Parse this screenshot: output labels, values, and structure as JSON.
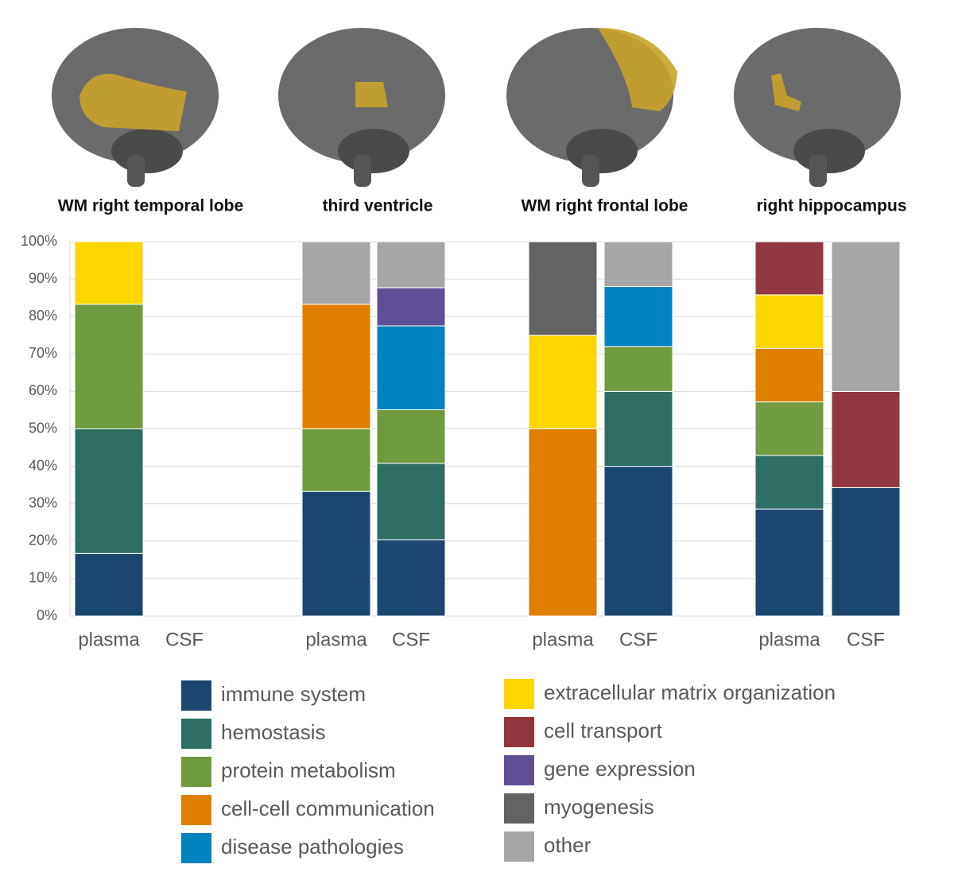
{
  "chart_data": {
    "type": "stacked_bar",
    "group_labels": [
      "WM right temporal lobe",
      "third ventricle",
      "WM right frontal lobe",
      "right hippocampus"
    ],
    "categories": [
      "plasma",
      "CSF",
      "plasma",
      "CSF",
      "plasma",
      "CSF",
      "plasma",
      "CSF"
    ],
    "series": [
      {
        "name": "immune system",
        "color": "#1b4670",
        "values": [
          16.7,
          null,
          33.3,
          20.4,
          null,
          40,
          28.6,
          34.3
        ]
      },
      {
        "name": "hemostasis",
        "color": "#2e6e64",
        "values": [
          33.3,
          null,
          null,
          20.4,
          null,
          20,
          14.3,
          null
        ]
      },
      {
        "name": "protein metabolism",
        "color": "#6f9a3e",
        "values": [
          33.3,
          null,
          16.7,
          14.3,
          null,
          12,
          14.3,
          null
        ]
      },
      {
        "name": "cell-cell communication",
        "color": "#e07e00",
        "values": [
          null,
          null,
          33.3,
          null,
          50,
          null,
          14.3,
          null
        ]
      },
      {
        "name": "disease pathologies",
        "color": "#0082be",
        "values": [
          null,
          null,
          null,
          22.4,
          null,
          16,
          null,
          null
        ]
      },
      {
        "name": "extracellular matrix organization",
        "color": "#ffd500",
        "values": [
          16.7,
          null,
          null,
          null,
          25,
          null,
          14.3,
          null
        ]
      },
      {
        "name": "cell transport",
        "color": "#923740",
        "values": [
          null,
          null,
          null,
          null,
          null,
          null,
          14.2,
          25.7
        ]
      },
      {
        "name": "gene expression",
        "color": "#604f96",
        "values": [
          null,
          null,
          null,
          10.2,
          null,
          null,
          null,
          null
        ]
      },
      {
        "name": "myogenesis",
        "color": "#636363",
        "values": [
          null,
          null,
          null,
          null,
          25,
          null,
          null,
          null
        ]
      },
      {
        "name": "other",
        "color": "#a6a6a6",
        "values": [
          null,
          null,
          16.7,
          12.3,
          null,
          12,
          null,
          40
        ]
      }
    ],
    "ylim": [
      0,
      100
    ],
    "yticks": [
      {
        "value": 0,
        "label": "0%"
      },
      {
        "value": 10,
        "label": "10%"
      },
      {
        "value": 20,
        "label": "20%"
      },
      {
        "value": 30,
        "label": "30%"
      },
      {
        "value": 40,
        "label": "40%"
      },
      {
        "value": 50,
        "label": "50%"
      },
      {
        "value": 60,
        "label": "60%"
      },
      {
        "value": 70,
        "label": "70%"
      },
      {
        "value": 80,
        "label": "80%"
      },
      {
        "value": 90,
        "label": "90%"
      },
      {
        "value": 100,
        "label": "100%"
      }
    ],
    "grid": true
  }
}
